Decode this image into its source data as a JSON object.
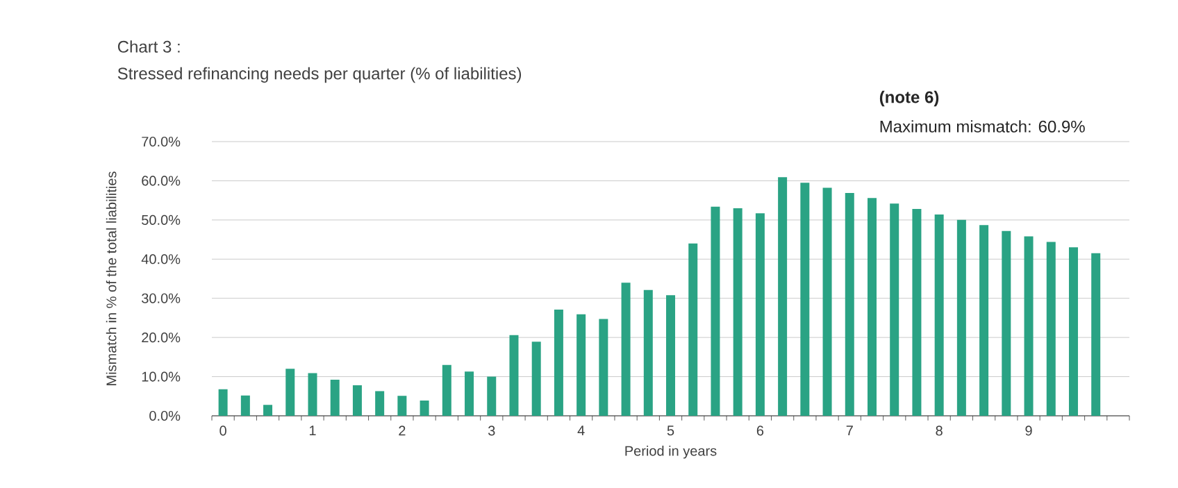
{
  "chart_data": {
    "type": "bar",
    "title": "Chart 3 :",
    "subtitle": "Stressed refinancing needs per quarter  (% of liabilities)",
    "xlabel": "Period in years",
    "ylabel": "Mismatch in % of the total liabilities",
    "annotations": [
      "**(note 6)**",
      "Maximum mismatch: 60.9%"
    ],
    "categories": [
      "0",
      null,
      null,
      null,
      "1",
      null,
      null,
      null,
      "2",
      null,
      null,
      null,
      "3",
      null,
      null,
      null,
      "4",
      null,
      null,
      null,
      "5",
      null,
      null,
      null,
      "6",
      null,
      null,
      null,
      "7",
      null,
      null,
      null,
      "8",
      null,
      null,
      null,
      "9",
      null,
      null,
      null,
      null
    ],
    "values": [
      6.8,
      5.2,
      2.8,
      12.0,
      10.9,
      9.2,
      7.8,
      6.3,
      5.1,
      3.9,
      13.0,
      11.3,
      10.0,
      20.6,
      18.9,
      27.1,
      25.9,
      24.7,
      34.0,
      32.1,
      30.8,
      44.0,
      53.4,
      53.0,
      51.7,
      60.9,
      59.5,
      58.2,
      56.9,
      55.6,
      54.2,
      52.8,
      51.4,
      50.0,
      48.7,
      47.2,
      45.8,
      44.4,
      43.0,
      41.5,
      null
    ],
    "color": "#2aa384",
    "ylim": [
      0,
      70
    ],
    "yticks": [
      {
        "value": 0,
        "label": "0.0%"
      },
      {
        "value": 10,
        "label": "10.0%"
      },
      {
        "value": 20,
        "label": "20.0%"
      },
      {
        "value": 30,
        "label": "30.0%"
      },
      {
        "value": 40,
        "label": "40.0%"
      },
      {
        "value": 50,
        "label": "50.0%"
      },
      {
        "value": 60,
        "label": "60.0%"
      },
      {
        "value": 70,
        "label": "70.0%"
      }
    ],
    "grid": "y"
  }
}
